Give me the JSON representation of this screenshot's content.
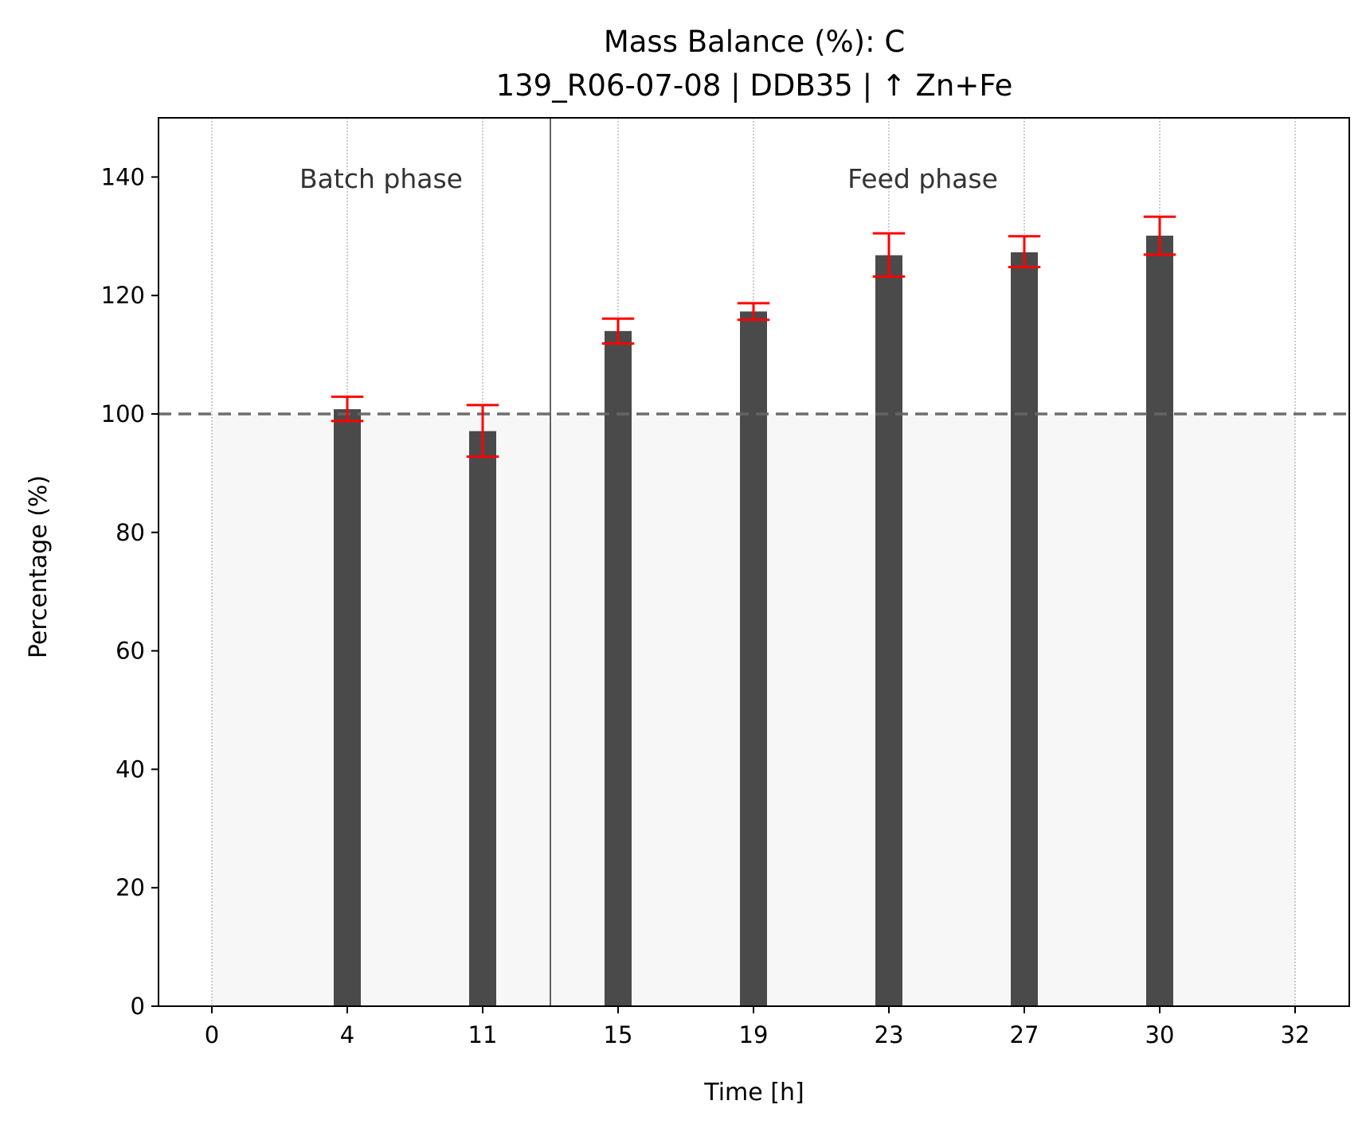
{
  "chart_data": {
    "type": "bar",
    "title": "Mass Balance (%): C",
    "subtitle": "139_R06-07-08 | DDB35 | ↑ Zn+Fe",
    "xlabel": "Time [h]",
    "ylabel": "Percentage (%)",
    "categories": [
      "0",
      "4",
      "11",
      "15",
      "19",
      "23",
      "27",
      "30",
      "32"
    ],
    "values": [
      null,
      100.8,
      97.1,
      114.0,
      117.3,
      126.8,
      127.3,
      130.1,
      null
    ],
    "error_low": [
      null,
      98.8,
      92.8,
      111.9,
      115.9,
      123.2,
      124.8,
      126.9,
      null
    ],
    "error_high": [
      null,
      102.9,
      101.5,
      116.1,
      118.7,
      130.5,
      130.0,
      133.3,
      null
    ],
    "ylim": [
      0,
      150
    ],
    "yticks": [
      0,
      20,
      40,
      60,
      80,
      100,
      120,
      140
    ],
    "reference_line": 100,
    "grid": "vertical dotted",
    "bar_color": "#4a4a4a",
    "error_color": "#ff0000",
    "reference_color": "#666666",
    "shade_color": "#f7f7f7",
    "phases": [
      {
        "label": "Batch phase",
        "start_index": 0,
        "end_index": 2
      },
      {
        "label": "Feed phase",
        "start_index": 2,
        "end_index": 8
      }
    ]
  }
}
